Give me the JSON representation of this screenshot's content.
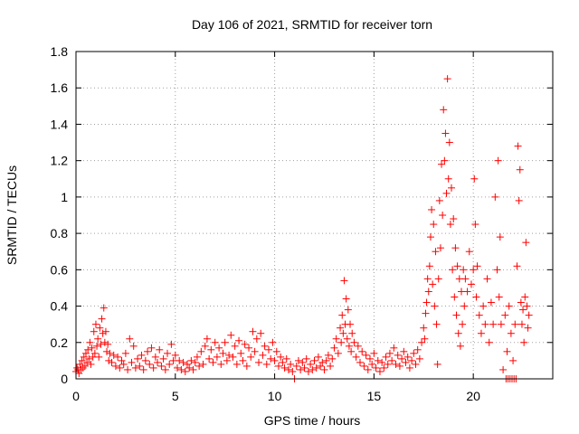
{
  "chart_data": {
    "type": "scatter",
    "title": "Day 106 of 2021, SRMTID for receiver torn",
    "xlabel": "GPS time / hours",
    "ylabel": "SRMTID / TECUs",
    "xlim": [
      0,
      24
    ],
    "ylim": [
      0,
      1.8
    ],
    "x_ticks": [
      0,
      5,
      10,
      15,
      20
    ],
    "x_tick_labels": [
      "0",
      "5",
      "10",
      "15",
      "20"
    ],
    "y_ticks": [
      0,
      0.2,
      0.4,
      0.6,
      0.8,
      1.0,
      1.2,
      1.4,
      1.6,
      1.8
    ],
    "y_tick_labels": [
      "0",
      "0.2",
      "0.4",
      "0.6",
      "0.8",
      "1",
      "1.2",
      "1.4",
      "1.6",
      "1.8"
    ],
    "grid": true,
    "marker": "+",
    "marker_color": "#ff0000",
    "series": [
      {
        "name": "SRMTID",
        "points": [
          [
            0.0,
            0.04
          ],
          [
            0.05,
            0.06
          ],
          [
            0.1,
            0.05
          ],
          [
            0.15,
            0.03
          ],
          [
            0.2,
            0.08
          ],
          [
            0.25,
            0.05
          ],
          [
            0.3,
            0.1
          ],
          [
            0.35,
            0.06
          ],
          [
            0.4,
            0.12
          ],
          [
            0.45,
            0.07
          ],
          [
            0.5,
            0.14
          ],
          [
            0.55,
            0.09
          ],
          [
            0.6,
            0.16
          ],
          [
            0.65,
            0.11
          ],
          [
            0.7,
            0.2
          ],
          [
            0.75,
            0.08
          ],
          [
            0.8,
            0.17
          ],
          [
            0.85,
            0.12
          ],
          [
            0.9,
            0.26
          ],
          [
            0.95,
            0.14
          ],
          [
            1.0,
            0.3
          ],
          [
            1.05,
            0.18
          ],
          [
            1.1,
            0.22
          ],
          [
            1.15,
            0.12
          ],
          [
            1.2,
            0.28
          ],
          [
            1.25,
            0.19
          ],
          [
            1.3,
            0.33
          ],
          [
            1.35,
            0.25
          ],
          [
            1.4,
            0.39
          ],
          [
            1.45,
            0.2
          ],
          [
            1.5,
            0.26
          ],
          [
            1.55,
            0.15
          ],
          [
            1.6,
            0.19
          ],
          [
            1.65,
            0.1
          ],
          [
            1.7,
            0.14
          ],
          [
            1.8,
            0.09
          ],
          [
            1.9,
            0.13
          ],
          [
            2.0,
            0.07
          ],
          [
            2.1,
            0.12
          ],
          [
            2.2,
            0.06
          ],
          [
            2.3,
            0.1
          ],
          [
            2.4,
            0.08
          ],
          [
            2.5,
            0.14
          ],
          [
            2.6,
            0.05
          ],
          [
            2.7,
            0.22
          ],
          [
            2.8,
            0.09
          ],
          [
            2.9,
            0.18
          ],
          [
            3.0,
            0.06
          ],
          [
            3.1,
            0.11
          ],
          [
            3.2,
            0.07
          ],
          [
            3.3,
            0.13
          ],
          [
            3.4,
            0.05
          ],
          [
            3.5,
            0.1
          ],
          [
            3.6,
            0.15
          ],
          [
            3.7,
            0.08
          ],
          [
            3.8,
            0.17
          ],
          [
            3.9,
            0.06
          ],
          [
            4.0,
            0.12
          ],
          [
            4.1,
            0.09
          ],
          [
            4.2,
            0.16
          ],
          [
            4.3,
            0.07
          ],
          [
            4.4,
            0.11
          ],
          [
            4.5,
            0.05
          ],
          [
            4.6,
            0.14
          ],
          [
            4.7,
            0.08
          ],
          [
            4.8,
            0.19
          ],
          [
            4.9,
            0.1
          ],
          [
            5.0,
            0.13
          ],
          [
            5.1,
            0.06
          ],
          [
            5.2,
            0.1
          ],
          [
            5.3,
            0.05
          ],
          [
            5.4,
            0.09
          ],
          [
            5.5,
            0.04
          ],
          [
            5.6,
            0.08
          ],
          [
            5.7,
            0.06
          ],
          [
            5.8,
            0.1
          ],
          [
            5.9,
            0.05
          ],
          [
            6.0,
            0.09
          ],
          [
            6.1,
            0.12
          ],
          [
            6.2,
            0.07
          ],
          [
            6.3,
            0.15
          ],
          [
            6.4,
            0.08
          ],
          [
            6.5,
            0.18
          ],
          [
            6.6,
            0.22
          ],
          [
            6.7,
            0.11
          ],
          [
            6.8,
            0.16
          ],
          [
            6.9,
            0.09
          ],
          [
            7.0,
            0.2
          ],
          [
            7.1,
            0.12
          ],
          [
            7.2,
            0.17
          ],
          [
            7.3,
            0.08
          ],
          [
            7.4,
            0.14
          ],
          [
            7.5,
            0.2
          ],
          [
            7.6,
            0.1
          ],
          [
            7.7,
            0.13
          ],
          [
            7.8,
            0.24
          ],
          [
            7.9,
            0.12
          ],
          [
            8.0,
            0.18
          ],
          [
            8.1,
            0.08
          ],
          [
            8.2,
            0.21
          ],
          [
            8.3,
            0.14
          ],
          [
            8.4,
            0.1
          ],
          [
            8.5,
            0.19
          ],
          [
            8.6,
            0.07
          ],
          [
            8.7,
            0.17
          ],
          [
            8.8,
            0.12
          ],
          [
            8.9,
            0.26
          ],
          [
            9.0,
            0.15
          ],
          [
            9.1,
            0.22
          ],
          [
            9.2,
            0.09
          ],
          [
            9.3,
            0.25
          ],
          [
            9.4,
            0.13
          ],
          [
            9.5,
            0.18
          ],
          [
            9.6,
            0.08
          ],
          [
            9.7,
            0.16
          ],
          [
            9.8,
            0.11
          ],
          [
            9.9,
            0.2
          ],
          [
            10.0,
            0.1
          ],
          [
            10.1,
            0.15
          ],
          [
            10.2,
            0.07
          ],
          [
            10.3,
            0.12
          ],
          [
            10.4,
            0.09
          ],
          [
            10.5,
            0.06
          ],
          [
            10.6,
            0.11
          ],
          [
            10.7,
            0.05
          ],
          [
            10.8,
            0.08
          ],
          [
            10.9,
            0.04
          ],
          [
            11.0,
            0.0
          ],
          [
            11.1,
            0.07
          ],
          [
            11.2,
            0.1
          ],
          [
            11.3,
            0.05
          ],
          [
            11.4,
            0.09
          ],
          [
            11.5,
            0.06
          ],
          [
            11.6,
            0.11
          ],
          [
            11.7,
            0.04
          ],
          [
            11.8,
            0.08
          ],
          [
            11.9,
            0.05
          ],
          [
            12.0,
            0.1
          ],
          [
            12.1,
            0.06
          ],
          [
            12.2,
            0.12
          ],
          [
            12.3,
            0.07
          ],
          [
            12.4,
            0.09
          ],
          [
            12.5,
            0.05
          ],
          [
            12.6,
            0.1
          ],
          [
            12.7,
            0.13
          ],
          [
            12.8,
            0.07
          ],
          [
            12.9,
            0.11
          ],
          [
            13.0,
            0.17
          ],
          [
            13.1,
            0.22
          ],
          [
            13.2,
            0.14
          ],
          [
            13.3,
            0.28
          ],
          [
            13.35,
            0.2
          ],
          [
            13.4,
            0.35
          ],
          [
            13.45,
            0.25
          ],
          [
            13.5,
            0.54
          ],
          [
            13.55,
            0.3
          ],
          [
            13.6,
            0.44
          ],
          [
            13.65,
            0.22
          ],
          [
            13.7,
            0.38
          ],
          [
            13.75,
            0.18
          ],
          [
            13.8,
            0.3
          ],
          [
            13.85,
            0.15
          ],
          [
            13.9,
            0.25
          ],
          [
            14.0,
            0.2
          ],
          [
            14.1,
            0.12
          ],
          [
            14.2,
            0.18
          ],
          [
            14.3,
            0.09
          ],
          [
            14.4,
            0.15
          ],
          [
            14.5,
            0.07
          ],
          [
            14.6,
            0.13
          ],
          [
            14.7,
            0.05
          ],
          [
            14.8,
            0.11
          ],
          [
            14.9,
            0.08
          ],
          [
            15.0,
            0.14
          ],
          [
            15.1,
            0.06
          ],
          [
            15.2,
            0.1
          ],
          [
            15.3,
            0.04
          ],
          [
            15.4,
            0.09
          ],
          [
            15.5,
            0.06
          ],
          [
            15.6,
            0.12
          ],
          [
            15.7,
            0.08
          ],
          [
            15.8,
            0.14
          ],
          [
            15.9,
            0.1
          ],
          [
            16.0,
            0.17
          ],
          [
            16.1,
            0.08
          ],
          [
            16.2,
            0.13
          ],
          [
            16.3,
            0.07
          ],
          [
            16.4,
            0.11
          ],
          [
            16.5,
            0.15
          ],
          [
            16.6,
            0.09
          ],
          [
            16.7,
            0.12
          ],
          [
            16.8,
            0.06
          ],
          [
            16.9,
            0.1
          ],
          [
            17.0,
            0.14
          ],
          [
            17.1,
            0.08
          ],
          [
            17.2,
            0.16
          ],
          [
            17.3,
            0.11
          ],
          [
            17.4,
            0.2
          ],
          [
            17.5,
            0.28
          ],
          [
            17.55,
            0.22
          ],
          [
            17.6,
            0.36
          ],
          [
            17.65,
            0.42
          ],
          [
            17.7,
            0.55
          ],
          [
            17.75,
            0.48
          ],
          [
            17.8,
            0.62
          ],
          [
            17.85,
            0.78
          ],
          [
            17.9,
            0.93
          ],
          [
            17.95,
            0.52
          ],
          [
            18.0,
            0.85
          ],
          [
            18.05,
            0.4
          ],
          [
            18.1,
            0.7
          ],
          [
            18.15,
            0.3
          ],
          [
            18.2,
            0.08
          ],
          [
            18.25,
            0.55
          ],
          [
            18.3,
            0.98
          ],
          [
            18.35,
            0.72
          ],
          [
            18.4,
            1.18
          ],
          [
            18.45,
            0.9
          ],
          [
            18.5,
            1.48
          ],
          [
            18.55,
            1.2
          ],
          [
            18.6,
            1.35
          ],
          [
            18.65,
            1.02
          ],
          [
            18.7,
            1.65
          ],
          [
            18.75,
            1.1
          ],
          [
            18.8,
            1.3
          ],
          [
            18.85,
            0.85
          ],
          [
            18.9,
            1.05
          ],
          [
            18.95,
            0.6
          ],
          [
            19.0,
            0.88
          ],
          [
            19.05,
            0.45
          ],
          [
            19.1,
            0.72
          ],
          [
            19.15,
            0.35
          ],
          [
            19.2,
            0.62
          ],
          [
            19.25,
            0.25
          ],
          [
            19.3,
            0.55
          ],
          [
            19.35,
            0.18
          ],
          [
            19.4,
            0.48
          ],
          [
            19.45,
            0.3
          ],
          [
            19.5,
            0.6
          ],
          [
            19.55,
            0.4
          ],
          [
            19.6,
            0.55
          ],
          [
            19.7,
            0.48
          ],
          [
            19.8,
            0.7
          ],
          [
            19.9,
            0.52
          ],
          [
            20.0,
            0.6
          ],
          [
            20.05,
            1.1
          ],
          [
            20.1,
            0.85
          ],
          [
            20.15,
            0.45
          ],
          [
            20.2,
            0.62
          ],
          [
            20.3,
            0.35
          ],
          [
            20.4,
            0.25
          ],
          [
            20.5,
            0.4
          ],
          [
            20.6,
            0.3
          ],
          [
            20.7,
            0.55
          ],
          [
            20.8,
            0.2
          ],
          [
            20.9,
            0.42
          ],
          [
            21.0,
            0.3
          ],
          [
            21.1,
            1.0
          ],
          [
            21.2,
            0.6
          ],
          [
            21.25,
            1.2
          ],
          [
            21.3,
            0.45
          ],
          [
            21.35,
            0.78
          ],
          [
            21.4,
            0.3
          ],
          [
            21.5,
            0.05
          ],
          [
            21.6,
            0.35
          ],
          [
            21.7,
            0.15
          ],
          [
            21.8,
            0.4
          ],
          [
            21.9,
            0.25
          ],
          [
            22.0,
            0.1
          ],
          [
            22.1,
            0.3
          ],
          [
            22.2,
            0.62
          ],
          [
            22.25,
            1.28
          ],
          [
            22.3,
            0.98
          ],
          [
            22.35,
            1.15
          ],
          [
            22.4,
            0.42
          ],
          [
            22.45,
            0.3
          ],
          [
            22.5,
            0.38
          ],
          [
            22.55,
            0.2
          ],
          [
            22.6,
            0.45
          ],
          [
            22.65,
            0.75
          ],
          [
            22.7,
            0.4
          ],
          [
            22.75,
            0.28
          ],
          [
            22.8,
            0.35
          ],
          [
            21.65,
            0.0
          ],
          [
            21.75,
            0.0
          ],
          [
            21.85,
            0.0
          ],
          [
            21.95,
            0.0
          ],
          [
            22.05,
            0.0
          ],
          [
            22.15,
            0.0
          ]
        ]
      }
    ]
  }
}
